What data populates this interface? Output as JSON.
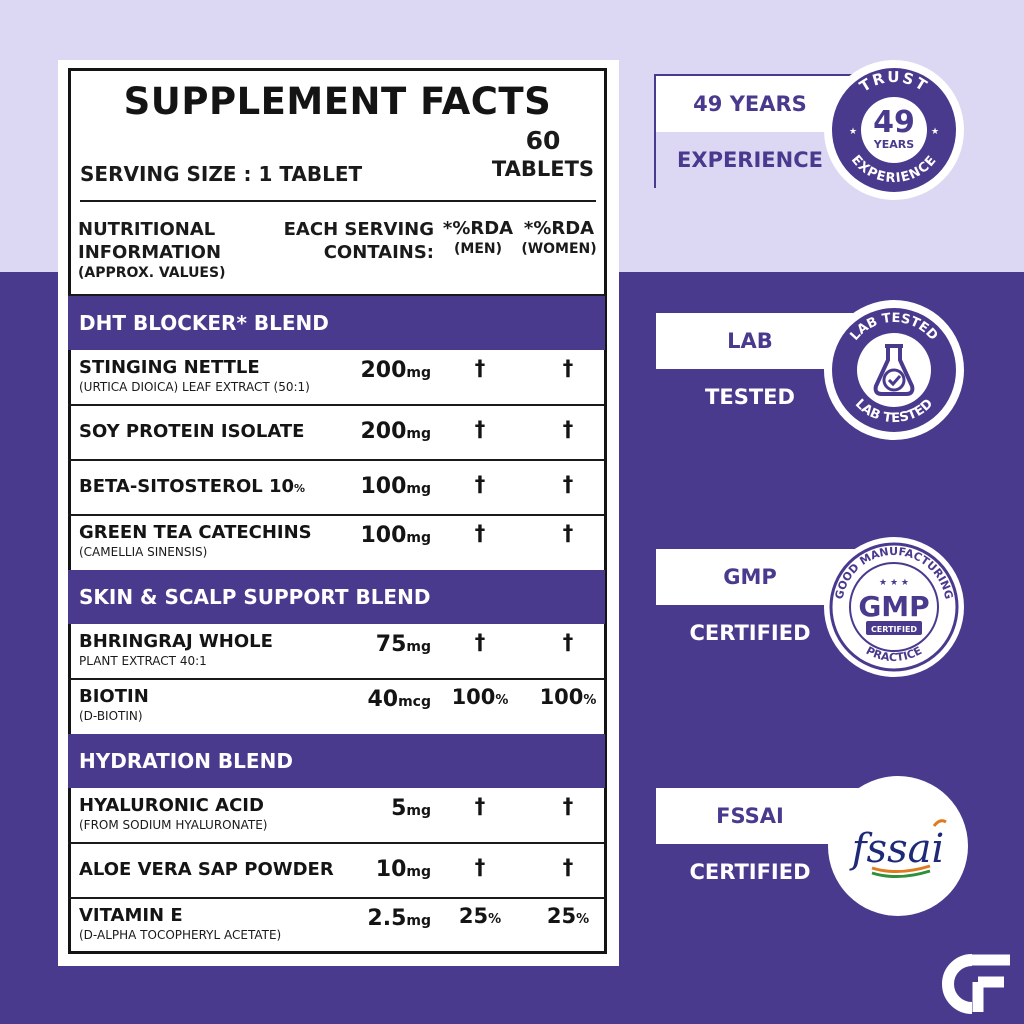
{
  "colors": {
    "brand": "#4a3a8e",
    "light_bg": "#dcd8f4",
    "text": "#141414"
  },
  "facts": {
    "title": "SUPPLEMENT FACTS",
    "serving_size": "SERVING SIZE : 1 TABLET",
    "count": "60",
    "count_unit": "TABLETS",
    "header": {
      "info_l1": "NUTRITIONAL",
      "info_l2": "INFORMATION",
      "info_l3": "(APPROX. VALUES)",
      "each_l1": "EACH SERVING",
      "each_l2": "CONTAINS:",
      "rda_men": "*%RDA",
      "rda_men_sub": "(MEN)",
      "rda_women": "*%RDA",
      "rda_women_sub": "(WOMEN)"
    },
    "blends": [
      {
        "title": "DHT BLOCKER* BLEND"
      },
      {
        "title": "SKIN & SCALP SUPPORT BLEND"
      },
      {
        "title": "HYDRATION BLEND"
      }
    ],
    "rows": [
      {
        "name": "STINGING NETTLE",
        "name_suffix": "",
        "sub": "(URTICA DIOICA) LEAF EXTRACT (50:1)",
        "amount": "200",
        "unit": "mg",
        "rda_men": "†",
        "rda_men_unit": "",
        "rda_women": "†",
        "rda_women_unit": ""
      },
      {
        "name": "SOY PROTEIN ISOLATE",
        "name_suffix": "",
        "sub": "",
        "amount": "200",
        "unit": "mg",
        "rda_men": "†",
        "rda_men_unit": "",
        "rda_women": "†",
        "rda_women_unit": ""
      },
      {
        "name": "BETA-SITOSTEROL 10",
        "name_suffix": "%",
        "sub": "",
        "amount": "100",
        "unit": "mg",
        "rda_men": "†",
        "rda_men_unit": "",
        "rda_women": "†",
        "rda_women_unit": ""
      },
      {
        "name": "GREEN TEA CATECHINS",
        "name_suffix": "",
        "sub": "(CAMELLIA SINENSIS)",
        "amount": "100",
        "unit": "mg",
        "rda_men": "†",
        "rda_men_unit": "",
        "rda_women": "†",
        "rda_women_unit": ""
      },
      {
        "name": "BHRINGRAJ WHOLE",
        "name_suffix": "",
        "sub": "PLANT EXTRACT 40:1",
        "amount": "75",
        "unit": "mg",
        "rda_men": "†",
        "rda_men_unit": "",
        "rda_women": "†",
        "rda_women_unit": ""
      },
      {
        "name": "BIOTIN",
        "name_suffix": "",
        "sub": "(D-BIOTIN)",
        "amount": "40",
        "unit": "mcg",
        "rda_men": "100",
        "rda_men_unit": "%",
        "rda_women": "100",
        "rda_women_unit": "%"
      },
      {
        "name": "HYALURONIC ACID",
        "name_suffix": "",
        "sub": "(FROM SODIUM HYALURONATE)",
        "amount": "5",
        "unit": "mg",
        "rda_men": "†",
        "rda_men_unit": "",
        "rda_women": "†",
        "rda_women_unit": ""
      },
      {
        "name": "ALOE VERA SAP POWDER",
        "name_suffix": "",
        "sub": "",
        "amount": "10",
        "unit": "mg",
        "rda_men": "†",
        "rda_men_unit": "",
        "rda_women": "†",
        "rda_women_unit": ""
      },
      {
        "name": "VITAMIN E",
        "name_suffix": "",
        "sub": "(D-ALPHA TOCOPHERYL ACETATE)",
        "amount": "2.5",
        "unit": "mg",
        "rda_men": "25",
        "rda_men_unit": "%",
        "rda_women": "25",
        "rda_women_unit": "%"
      }
    ]
  },
  "badges": [
    {
      "upper": "49 YEARS",
      "lower": "EXPERIENCE",
      "seal_top": "TRUST",
      "seal_num": "49",
      "seal_mid": "YEARS",
      "seal_bottom": "EXPERIENCE",
      "icon": "trust-seal-icon"
    },
    {
      "upper": "LAB",
      "lower": "TESTED",
      "seal_top": "LAB TESTED",
      "seal_bottom": "LAB TESTED",
      "icon": "flask-check-icon"
    },
    {
      "upper": "GMP",
      "lower": "CERTIFIED",
      "seal_top": "GOOD MANUFACTURING",
      "seal_num": "GMP",
      "seal_mid": "CERTIFIED",
      "seal_bottom": "PRACTICE",
      "icon": "gmp-seal-icon"
    },
    {
      "upper": "FSSAI",
      "lower": "CERTIFIED",
      "seal_logo": "fssai",
      "icon": "fssai-logo-icon"
    }
  ],
  "brand_logo": "cf-logo-icon"
}
